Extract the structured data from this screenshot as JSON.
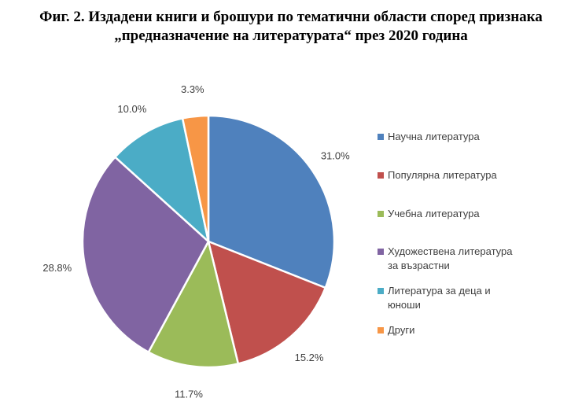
{
  "chart_data": {
    "type": "pie",
    "title": [
      "Фиг. 2. Издадени книги и брошури по тематични области според признака",
      "„предназначение на литературата“ през 2020 година"
    ],
    "categories": [
      "Научна литература",
      "Популярна литература",
      "Учебна литература",
      "Художествена литература за възрастни",
      "Литература за деца и юноши",
      "Други"
    ],
    "legend_lines": [
      [
        "Научна литература"
      ],
      [
        "Популярна литература"
      ],
      [
        "Учебна литература"
      ],
      [
        "Художествена литература",
        "за възрастни"
      ],
      [
        "Литература за деца и",
        "юноши"
      ],
      [
        "Други"
      ]
    ],
    "values": [
      31.0,
      15.2,
      11.7,
      28.8,
      10.0,
      3.3
    ],
    "labels": [
      "31.0%",
      "15.2%",
      "11.7%",
      "28.8%",
      "10.0%",
      "3.3%"
    ],
    "colors": [
      "#4F81BD",
      "#C0504D",
      "#9BBB59",
      "#8064A2",
      "#4BACC6",
      "#F79646"
    ],
    "legend_position": "right"
  }
}
